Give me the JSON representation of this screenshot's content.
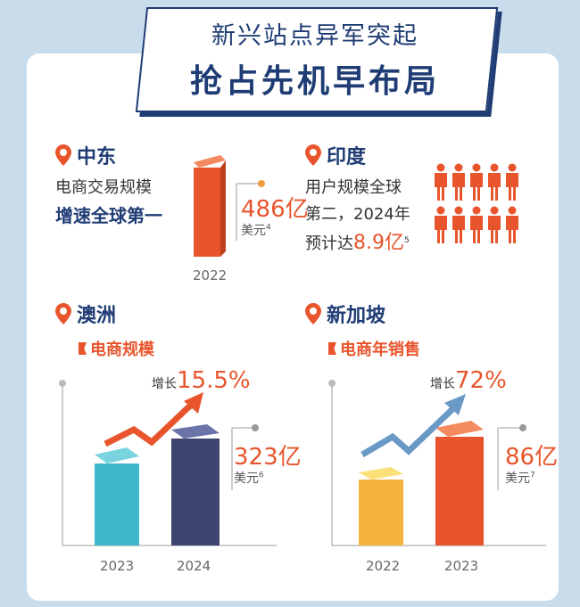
{
  "title": {
    "line1": "新兴站点异军突起",
    "line2": "抢占先机早布局"
  },
  "regions": {
    "middle_east": {
      "name": "中东",
      "line1": "电商交易规模",
      "line2": "增速全球第一",
      "value": "486亿",
      "unit": "美元",
      "footnote": "4",
      "year": "2022"
    },
    "india": {
      "name": "印度",
      "line1": "用户规模全球",
      "line2": "第二，2024年",
      "line3_prefix": "预计达",
      "value": "8.9亿",
      "footnote": "5"
    },
    "australia": {
      "name": "澳洲",
      "metric": "电商规模",
      "growth_prefix": "增长",
      "growth": "15.5%",
      "value": "323亿",
      "unit": "美元",
      "footnote": "6"
    },
    "singapore": {
      "name": "新加坡",
      "metric": "电商年销售",
      "growth_prefix": "增长",
      "growth": "72%",
      "value": "86亿",
      "unit": "美元",
      "footnote": "7"
    }
  },
  "colors": {
    "navy": "#1f3c74",
    "orange": "#e8552d",
    "teal": "#3fb8c9",
    "indigo": "#3c4470",
    "yellow": "#f4b33c"
  },
  "chart_data": [
    {
      "type": "bar",
      "categories": [
        "2022"
      ],
      "values": [
        486
      ],
      "title": "中东 电商交易规模",
      "ylabel": "亿美元"
    },
    {
      "type": "bar",
      "categories": [
        "2023",
        "2024"
      ],
      "values": [
        280,
        323
      ],
      "title": "澳洲 电商规模",
      "growth": "15.5%",
      "ylabel": "亿美元"
    },
    {
      "type": "bar",
      "categories": [
        "2022",
        "2023"
      ],
      "values": [
        50,
        86
      ],
      "title": "新加坡 电商年销售",
      "growth": "72%",
      "ylabel": "亿美元"
    }
  ]
}
